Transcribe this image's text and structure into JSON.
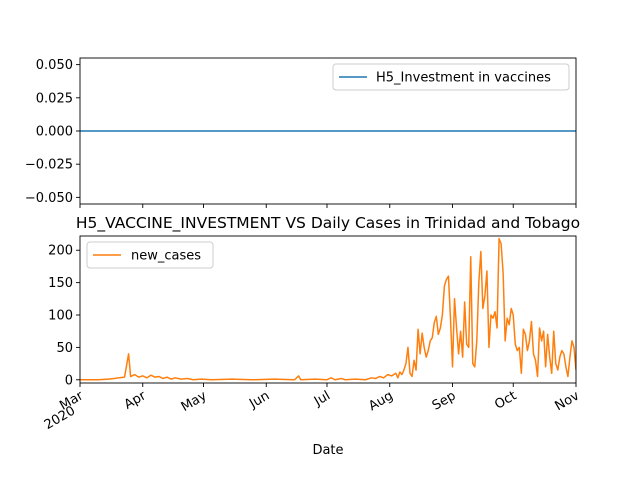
{
  "chart_data": [
    {
      "type": "line",
      "title": "",
      "xlabel": "",
      "ylabel": "",
      "ylim": [
        -0.055,
        0.055
      ],
      "yticks": [
        "0.050",
        "0.025",
        "0.000",
        "−0.025",
        "−0.050"
      ],
      "ytick_values": [
        0.05,
        0.025,
        0.0,
        -0.025,
        -0.05
      ],
      "legend_placement": "upper right",
      "series": [
        {
          "name": "H5_Investment in vaccines",
          "color": "#1f77b4",
          "x": [
            "2020-03-01",
            "2020-11-01"
          ],
          "values": [
            0,
            0
          ]
        }
      ]
    },
    {
      "type": "line",
      "title": "H5_VACCINE_INVESTMENT VS Daily Cases in Trinidad and Tobago",
      "xlabel": "Date",
      "ylabel": "",
      "ylim": [
        -5,
        222
      ],
      "yticks": [
        "0",
        "50",
        "100",
        "150",
        "200"
      ],
      "ytick_values": [
        0,
        50,
        100,
        150,
        200
      ],
      "xlim": [
        "2020-03-01",
        "2020-11-01"
      ],
      "xticks": [
        {
          "label": "Mar",
          "sub": "2020",
          "date": "2020-03-01"
        },
        {
          "label": "Apr",
          "sub": "",
          "date": "2020-04-01"
        },
        {
          "label": "May",
          "sub": "",
          "date": "2020-05-01"
        },
        {
          "label": "Jun",
          "sub": "",
          "date": "2020-06-01"
        },
        {
          "label": "Jul",
          "sub": "",
          "date": "2020-07-01"
        },
        {
          "label": "Aug",
          "sub": "",
          "date": "2020-08-01"
        },
        {
          "label": "Sep",
          "sub": "",
          "date": "2020-09-01"
        },
        {
          "label": "Oct",
          "sub": "",
          "date": "2020-10-01"
        },
        {
          "label": "Nov",
          "sub": "",
          "date": "2020-11-01"
        }
      ],
      "legend_placement": "upper left",
      "series": [
        {
          "name": "new_cases",
          "color": "#ff7f0e",
          "points": [
            [
              "2020-03-01",
              0
            ],
            [
              "2020-03-10",
              0
            ],
            [
              "2020-03-15",
              1
            ],
            [
              "2020-03-18",
              2
            ],
            [
              "2020-03-20",
              3
            ],
            [
              "2020-03-23",
              4
            ],
            [
              "2020-03-25",
              40
            ],
            [
              "2020-03-26",
              5
            ],
            [
              "2020-03-28",
              8
            ],
            [
              "2020-03-30",
              4
            ],
            [
              "2020-04-01",
              6
            ],
            [
              "2020-04-03",
              3
            ],
            [
              "2020-04-05",
              7
            ],
            [
              "2020-04-07",
              4
            ],
            [
              "2020-04-09",
              5
            ],
            [
              "2020-04-11",
              2
            ],
            [
              "2020-04-13",
              4
            ],
            [
              "2020-04-15",
              1
            ],
            [
              "2020-04-17",
              3
            ],
            [
              "2020-04-20",
              1
            ],
            [
              "2020-04-23",
              2
            ],
            [
              "2020-04-26",
              0
            ],
            [
              "2020-04-30",
              1
            ],
            [
              "2020-05-05",
              0
            ],
            [
              "2020-05-15",
              1
            ],
            [
              "2020-05-25",
              0
            ],
            [
              "2020-06-05",
              1
            ],
            [
              "2020-06-15",
              0
            ],
            [
              "2020-06-17",
              6
            ],
            [
              "2020-06-18",
              0
            ],
            [
              "2020-06-25",
              1
            ],
            [
              "2020-07-01",
              0
            ],
            [
              "2020-07-03",
              3
            ],
            [
              "2020-07-05",
              0
            ],
            [
              "2020-07-08",
              2
            ],
            [
              "2020-07-10",
              0
            ],
            [
              "2020-07-15",
              1
            ],
            [
              "2020-07-20",
              0
            ],
            [
              "2020-07-23",
              3
            ],
            [
              "2020-07-25",
              2
            ],
            [
              "2020-07-27",
              5
            ],
            [
              "2020-07-29",
              3
            ],
            [
              "2020-07-31",
              8
            ],
            [
              "2020-08-02",
              6
            ],
            [
              "2020-08-04",
              10
            ],
            [
              "2020-08-05",
              3
            ],
            [
              "2020-08-06",
              12
            ],
            [
              "2020-08-07",
              8
            ],
            [
              "2020-08-08",
              15
            ],
            [
              "2020-08-09",
              25
            ],
            [
              "2020-08-10",
              50
            ],
            [
              "2020-08-11",
              10
            ],
            [
              "2020-08-12",
              5
            ],
            [
              "2020-08-13",
              30
            ],
            [
              "2020-08-14",
              15
            ],
            [
              "2020-08-15",
              78
            ],
            [
              "2020-08-16",
              40
            ],
            [
              "2020-08-17",
              72
            ],
            [
              "2020-08-18",
              50
            ],
            [
              "2020-08-19",
              35
            ],
            [
              "2020-08-20",
              45
            ],
            [
              "2020-08-21",
              60
            ],
            [
              "2020-08-22",
              65
            ],
            [
              "2020-08-23",
              88
            ],
            [
              "2020-08-24",
              98
            ],
            [
              "2020-08-25",
              70
            ],
            [
              "2020-08-26",
              80
            ],
            [
              "2020-08-27",
              100
            ],
            [
              "2020-08-28",
              145
            ],
            [
              "2020-08-29",
              155
            ],
            [
              "2020-08-30",
              160
            ],
            [
              "2020-08-31",
              95
            ],
            [
              "2020-09-01",
              20
            ],
            [
              "2020-09-02",
              125
            ],
            [
              "2020-09-03",
              80
            ],
            [
              "2020-09-04",
              40
            ],
            [
              "2020-09-05",
              75
            ],
            [
              "2020-09-06",
              35
            ],
            [
              "2020-09-07",
              120
            ],
            [
              "2020-09-08",
              55
            ],
            [
              "2020-09-09",
              50
            ],
            [
              "2020-09-10",
              190
            ],
            [
              "2020-09-11",
              25
            ],
            [
              "2020-09-12",
              20
            ],
            [
              "2020-09-13",
              60
            ],
            [
              "2020-09-14",
              150
            ],
            [
              "2020-09-15",
              198
            ],
            [
              "2020-09-16",
              110
            ],
            [
              "2020-09-17",
              130
            ],
            [
              "2020-09-18",
              168
            ],
            [
              "2020-09-19",
              50
            ],
            [
              "2020-09-20",
              100
            ],
            [
              "2020-09-21",
              95
            ],
            [
              "2020-09-22",
              105
            ],
            [
              "2020-09-23",
              80
            ],
            [
              "2020-09-24",
              218
            ],
            [
              "2020-09-25",
              210
            ],
            [
              "2020-09-26",
              165
            ],
            [
              "2020-09-27",
              60
            ],
            [
              "2020-09-28",
              95
            ],
            [
              "2020-09-29",
              85
            ],
            [
              "2020-09-30",
              110
            ],
            [
              "2020-10-01",
              100
            ],
            [
              "2020-10-02",
              55
            ],
            [
              "2020-10-03",
              45
            ],
            [
              "2020-10-04",
              50
            ],
            [
              "2020-10-05",
              10
            ],
            [
              "2020-10-06",
              78
            ],
            [
              "2020-10-07",
              70
            ],
            [
              "2020-10-08",
              45
            ],
            [
              "2020-10-09",
              60
            ],
            [
              "2020-10-10",
              90
            ],
            [
              "2020-10-11",
              40
            ],
            [
              "2020-10-12",
              30
            ],
            [
              "2020-10-13",
              5
            ],
            [
              "2020-10-14",
              80
            ],
            [
              "2020-10-15",
              60
            ],
            [
              "2020-10-16",
              75
            ],
            [
              "2020-10-17",
              20
            ],
            [
              "2020-10-18",
              70
            ],
            [
              "2020-10-19",
              35
            ],
            [
              "2020-10-20",
              10
            ],
            [
              "2020-10-21",
              75
            ],
            [
              "2020-10-22",
              25
            ],
            [
              "2020-10-23",
              15
            ],
            [
              "2020-10-24",
              35
            ],
            [
              "2020-10-25",
              45
            ],
            [
              "2020-10-26",
              40
            ],
            [
              "2020-10-27",
              20
            ],
            [
              "2020-10-28",
              5
            ],
            [
              "2020-10-29",
              35
            ],
            [
              "2020-10-30",
              60
            ],
            [
              "2020-10-31",
              50
            ],
            [
              "2020-11-01",
              15
            ]
          ]
        }
      ]
    }
  ]
}
